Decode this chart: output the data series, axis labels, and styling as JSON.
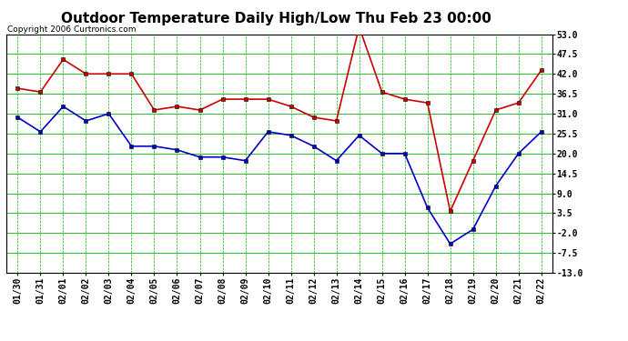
{
  "title": "Outdoor Temperature Daily High/Low Thu Feb 23 00:00",
  "copyright": "Copyright 2006 Curtronics.com",
  "x_labels": [
    "01/30",
    "01/31",
    "02/01",
    "02/02",
    "02/03",
    "02/04",
    "02/05",
    "02/06",
    "02/07",
    "02/08",
    "02/09",
    "02/10",
    "02/11",
    "02/12",
    "02/13",
    "02/14",
    "02/15",
    "02/16",
    "02/17",
    "02/18",
    "02/19",
    "02/20",
    "02/21",
    "02/22"
  ],
  "high_temps": [
    38,
    37,
    46,
    42,
    42,
    42,
    32,
    33,
    32,
    35,
    35,
    35,
    33,
    30,
    29,
    55,
    37,
    35,
    34,
    4,
    18,
    32,
    34,
    43
  ],
  "low_temps": [
    30,
    26,
    33,
    29,
    31,
    22,
    22,
    21,
    19,
    19,
    18,
    26,
    25,
    22,
    18,
    25,
    20,
    20,
    5,
    -5,
    -1,
    11,
    20,
    26
  ],
  "high_color": "#cc0000",
  "low_color": "#0000cc",
  "marker": "s",
  "markersize": 3,
  "linewidth": 1.2,
  "ylim": [
    -13.0,
    53.0
  ],
  "yticks": [
    53.0,
    47.5,
    42.0,
    36.5,
    31.0,
    25.5,
    20.0,
    14.5,
    9.0,
    3.5,
    -2.0,
    -7.5,
    -13.0
  ],
  "bg_color": "#ffffff",
  "plot_bg_color": "#ffffff",
  "grid_major_color": "#00bb00",
  "grid_minor_color": "#00bb00",
  "title_fontsize": 11,
  "tick_fontsize": 7,
  "copyright_fontsize": 6.5
}
